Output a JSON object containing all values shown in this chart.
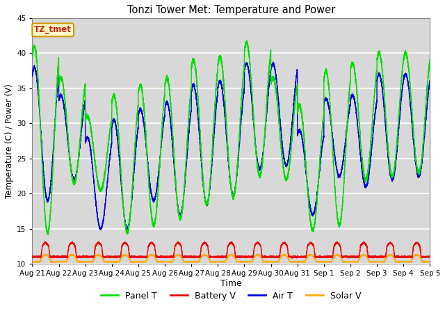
{
  "title": "Tonzi Tower Met: Temperature and Power",
  "xlabel": "Time",
  "ylabel": "Temperature (C) / Power (V)",
  "ylim": [
    10,
    45
  ],
  "annotation_text": "TZ_tmet",
  "annotation_color": "#cc2200",
  "annotation_bg": "#ffffcc",
  "annotation_border": "#cc9900",
  "panel_T_color": "#00dd00",
  "battery_V_color": "#ee0000",
  "air_T_color": "#0000dd",
  "solar_V_color": "#ffaa00",
  "plot_bg": "#d8d8d8",
  "fig_bg": "#ffffff",
  "grid_color": "#ffffff",
  "yticks": [
    10,
    15,
    20,
    25,
    30,
    35,
    40,
    45
  ],
  "x_labels": [
    "Aug 21",
    "Aug 22",
    "Aug 23",
    "Aug 24",
    "Aug 25",
    "Aug 26",
    "Aug 27",
    "Aug 28",
    "Aug 29",
    "Aug 30",
    "Aug 31",
    "Sep 1",
    "Sep 2",
    "Sep 3",
    "Sep 4",
    "Sep 5"
  ],
  "legend_labels": [
    "Panel T",
    "Battery V",
    "Air T",
    "Solar V"
  ],
  "legend_colors": [
    "#00dd00",
    "#ee0000",
    "#0000dd",
    "#ffaa00"
  ]
}
